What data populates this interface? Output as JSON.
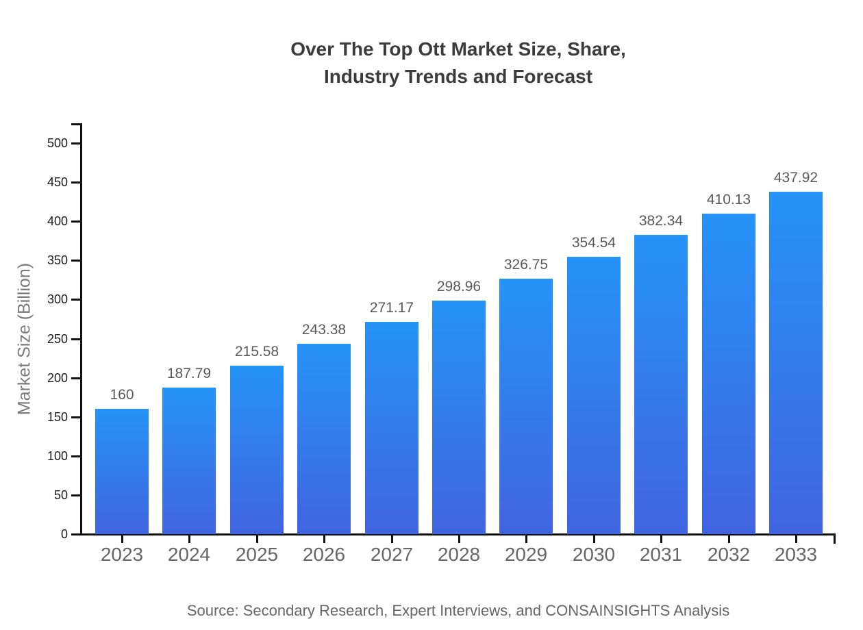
{
  "title": {
    "line1": "Over The Top Ott Market Size, Share,",
    "line2": "Industry Trends and Forecast"
  },
  "source_note": "Source: Secondary Research, Expert Interviews, and CONSAINSIGHTS Analysis",
  "chart_data": {
    "type": "bar",
    "title": "Over The Top Ott Market Size, Share, Industry Trends and Forecast",
    "categories": [
      "2023",
      "2024",
      "2025",
      "2026",
      "2027",
      "2028",
      "2029",
      "2030",
      "2031",
      "2032",
      "2033"
    ],
    "values": [
      160,
      187.79,
      215.58,
      243.38,
      271.17,
      298.96,
      326.75,
      354.54,
      382.34,
      410.13,
      437.92
    ],
    "value_labels": [
      "160",
      "187.79",
      "215.58",
      "243.38",
      "271.17",
      "298.96",
      "326.75",
      "354.54",
      "382.34",
      "410.13",
      "437.92"
    ],
    "xlabel": "",
    "ylabel": "Market Size (Billion)",
    "ylim": [
      0,
      500
    ],
    "yticks": [
      0,
      50,
      100,
      150,
      200,
      250,
      300,
      350,
      400,
      450,
      500
    ],
    "grid": false,
    "legend": "none",
    "colors": {
      "bar_gradient_top": "#2593f7",
      "bar_gradient_bottom": "#4164e0",
      "axis": "#111111",
      "title_text": "#3b3b3b",
      "value_label_text": "#595959",
      "x_tick_text": "#666666",
      "y_tick_text": "#1a1a1a",
      "y_axis_title_text": "#7a7a7a",
      "source_text": "#666666",
      "background": "#ffffff"
    }
  }
}
